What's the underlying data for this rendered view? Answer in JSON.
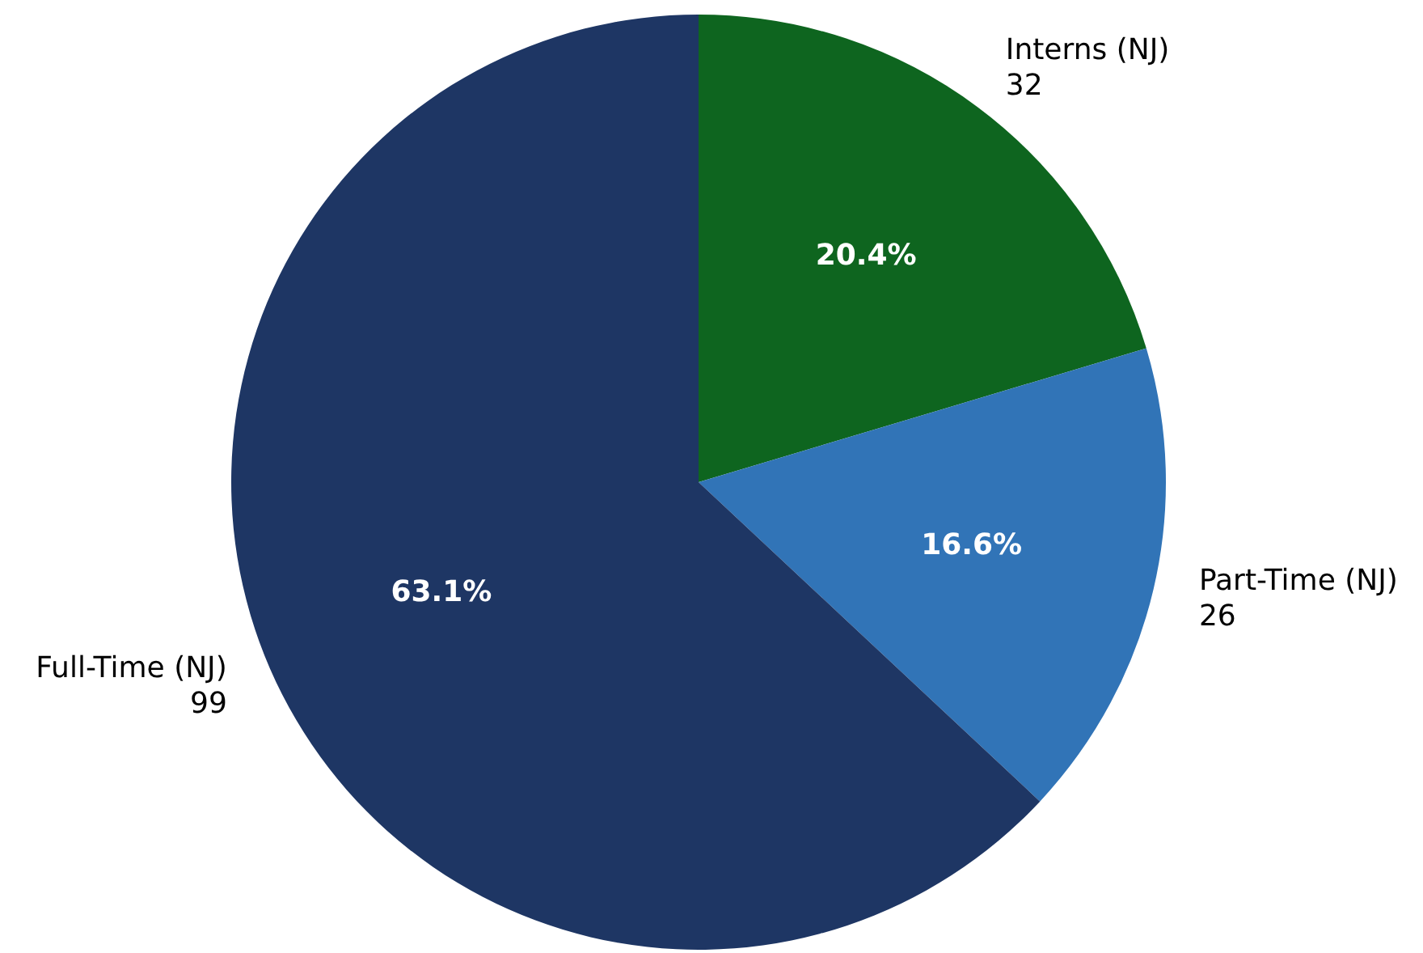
{
  "chart_data": {
    "type": "pie",
    "categories": [
      "Interns (NJ)\n32",
      "Part-Time (NJ)\n26",
      "Full-Time (NJ)\n99"
    ],
    "values": [
      20.4,
      16.6,
      63.1
    ],
    "colors": [
      "#0e651f",
      "#3174b7",
      "#1e3664"
    ],
    "value_labels": [
      "20.4%",
      "16.6%",
      "63.1%"
    ],
    "legend": false
  }
}
